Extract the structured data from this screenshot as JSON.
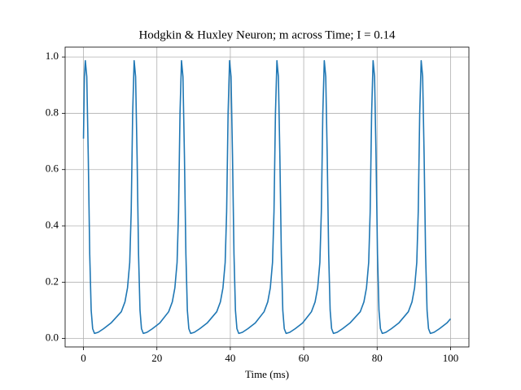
{
  "chart_data": {
    "type": "line",
    "title": "Hodgkin & Huxley Neuron; m across Time; I = 0.14",
    "xlabel": "Time (ms)",
    "color": "#1f77b4",
    "grid": true,
    "xlim": [
      -5,
      105
    ],
    "ylim": [
      -0.03,
      1.035
    ],
    "xticks": [
      0,
      20,
      40,
      60,
      80,
      100
    ],
    "yticks": [
      {
        "value": 0,
        "label": "0.0"
      },
      0.2,
      0.4,
      0.6,
      0.8,
      {
        "value": 1,
        "label": "1.0"
      }
    ],
    "x": [
      0,
      0.25,
      0.5,
      0.9,
      1.3,
      1.7,
      2.1,
      2.5,
      3.0,
      4.0,
      5.5,
      7.5,
      10.3,
      11.3,
      12.0,
      12.6,
      13.0,
      13.4,
      13.8,
      14.2,
      14.6,
      15.0,
      15.4,
      15.8,
      16.3,
      17.3,
      18.8,
      20.8,
      23.2,
      24.2,
      24.9,
      25.5,
      25.9,
      26.3,
      26.7,
      27.1,
      27.5,
      27.9,
      28.3,
      28.7,
      29.2,
      30.2,
      31.7,
      33.7,
      36.3,
      37.3,
      38.0,
      38.6,
      39.0,
      39.4,
      39.8,
      40.2,
      40.6,
      41.0,
      41.4,
      41.8,
      42.3,
      43.3,
      44.8,
      46.8,
      49.2,
      50.2,
      50.9,
      51.5,
      51.9,
      52.3,
      52.7,
      53.1,
      53.5,
      53.9,
      54.3,
      54.7,
      55.2,
      56.2,
      57.7,
      59.7,
      62.1,
      63.1,
      63.8,
      64.4,
      64.8,
      65.2,
      65.6,
      66.0,
      66.4,
      66.8,
      67.2,
      67.6,
      68.1,
      69.1,
      70.6,
      72.6,
      75.4,
      76.4,
      77.1,
      77.7,
      78.1,
      78.5,
      78.9,
      79.3,
      79.7,
      80.1,
      80.5,
      80.9,
      81.4,
      82.4,
      83.9,
      85.9,
      88.5,
      89.5,
      90.2,
      90.8,
      91.2,
      91.6,
      92.0,
      92.4,
      92.8,
      93.2,
      93.6,
      94.0,
      94.5,
      95.5,
      97.0,
      99.0,
      100
    ],
    "values": [
      0.71,
      0.93,
      0.987,
      0.93,
      0.65,
      0.3,
      0.1,
      0.035,
      0.018,
      0.022,
      0.035,
      0.055,
      0.095,
      0.13,
      0.18,
      0.27,
      0.45,
      0.8,
      0.987,
      0.93,
      0.65,
      0.3,
      0.1,
      0.035,
      0.018,
      0.022,
      0.035,
      0.055,
      0.095,
      0.13,
      0.18,
      0.27,
      0.45,
      0.8,
      0.987,
      0.93,
      0.65,
      0.3,
      0.1,
      0.035,
      0.018,
      0.022,
      0.035,
      0.055,
      0.095,
      0.13,
      0.18,
      0.27,
      0.45,
      0.8,
      0.987,
      0.93,
      0.65,
      0.3,
      0.1,
      0.035,
      0.018,
      0.022,
      0.035,
      0.055,
      0.095,
      0.13,
      0.18,
      0.27,
      0.45,
      0.8,
      0.987,
      0.93,
      0.65,
      0.3,
      0.1,
      0.035,
      0.018,
      0.022,
      0.035,
      0.055,
      0.095,
      0.13,
      0.18,
      0.27,
      0.45,
      0.8,
      0.987,
      0.93,
      0.65,
      0.3,
      0.1,
      0.035,
      0.018,
      0.022,
      0.035,
      0.055,
      0.095,
      0.13,
      0.18,
      0.27,
      0.45,
      0.8,
      0.987,
      0.93,
      0.65,
      0.3,
      0.1,
      0.035,
      0.018,
      0.022,
      0.035,
      0.055,
      0.095,
      0.13,
      0.18,
      0.27,
      0.45,
      0.8,
      0.987,
      0.93,
      0.65,
      0.3,
      0.1,
      0.035,
      0.018,
      0.022,
      0.035,
      0.055,
      0.07
    ]
  }
}
